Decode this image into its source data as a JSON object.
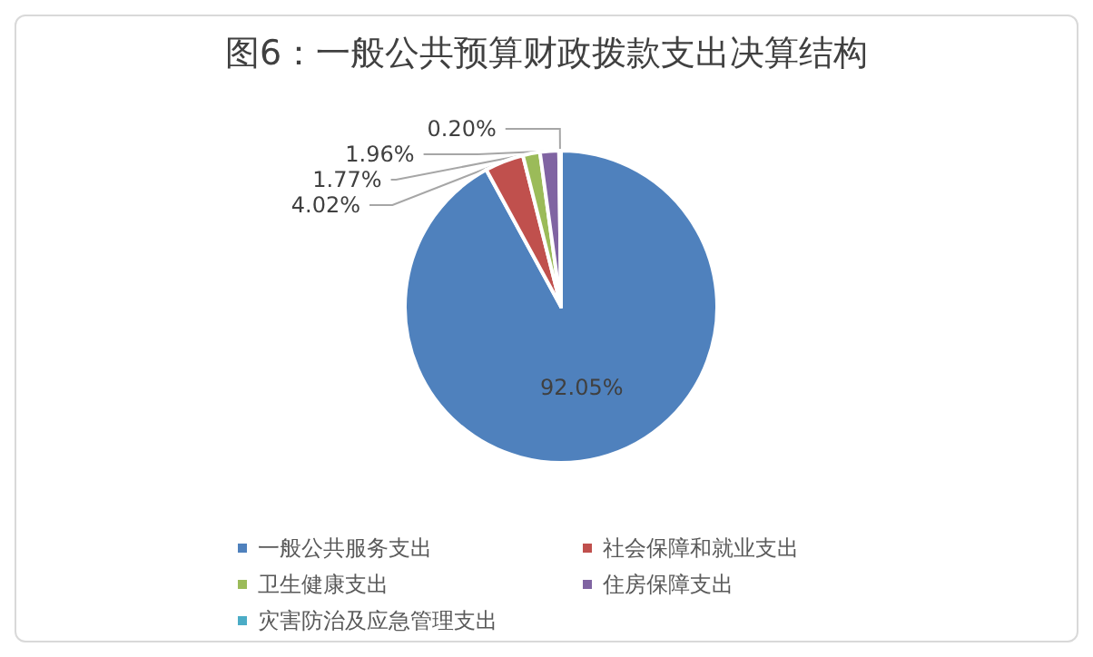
{
  "chart_data": {
    "type": "pie",
    "title": "图6：一般公共预算财政拨款支出决算结构",
    "categories": [
      "一般公共服务支出",
      "社会保障和就业支出",
      "卫生健康支出",
      "住房保障支出",
      "灾害防治及应急管理支出"
    ],
    "values": [
      92.05,
      4.02,
      1.77,
      1.96,
      0.2
    ],
    "value_labels": [
      "92.05%",
      "4.02%",
      "1.77%",
      "1.96%",
      "0.20%"
    ],
    "colors": [
      "#4f81bd",
      "#c0504d",
      "#9bbb59",
      "#8064a2",
      "#4bacc6"
    ],
    "legend": "bottom"
  }
}
